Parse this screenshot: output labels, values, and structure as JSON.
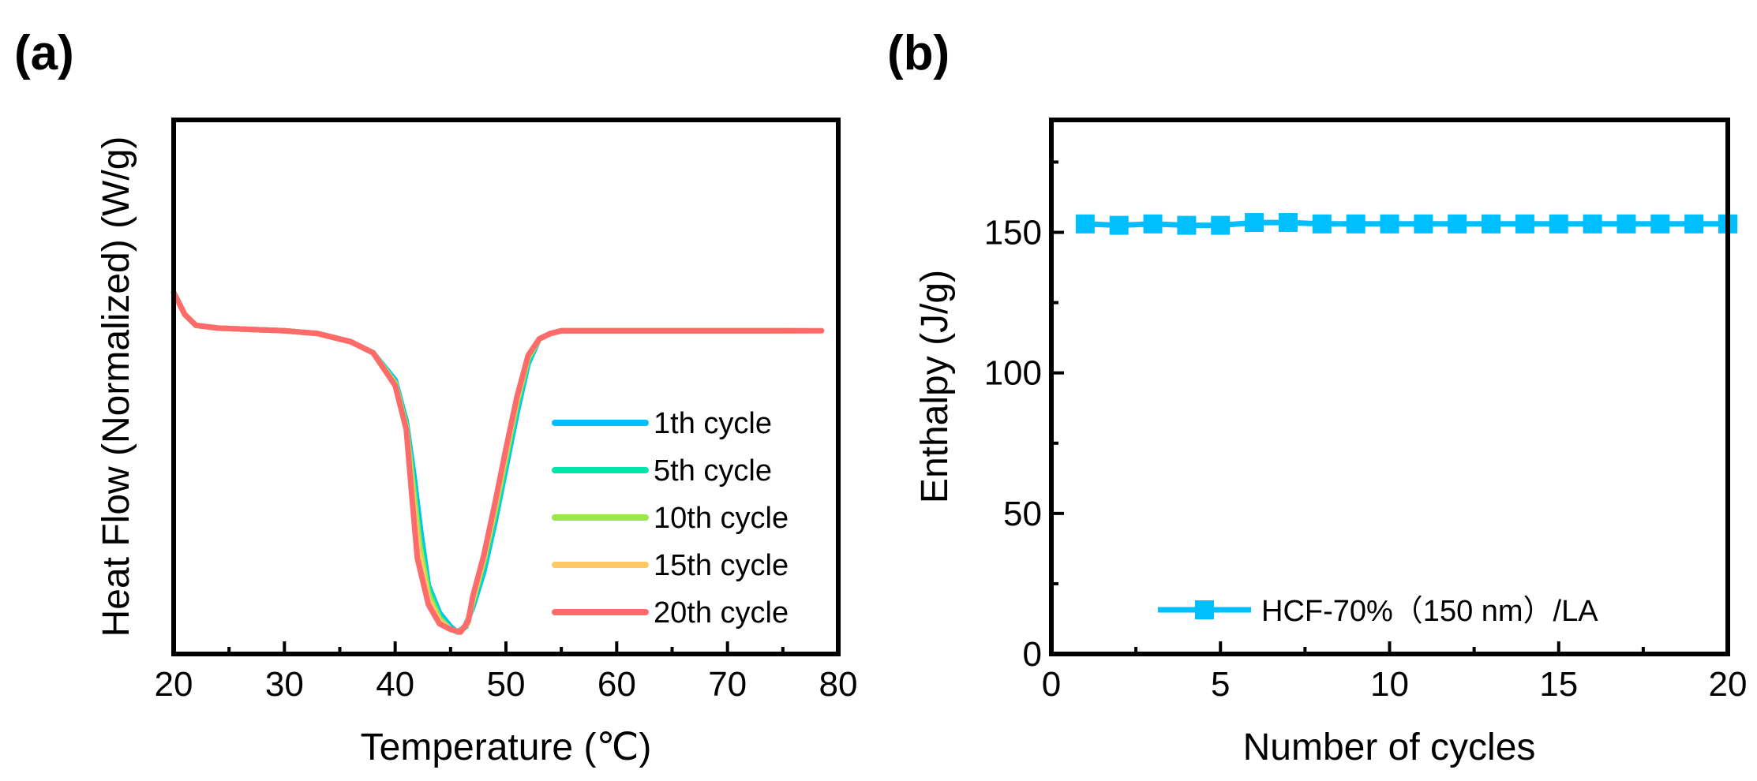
{
  "chart_data": [
    {
      "panel": "(a)",
      "type": "line",
      "title": "",
      "xlabel": "Temperature (℃)",
      "ylabel": "Heat Flow (Normalized) (W/g)",
      "xlim": [
        20,
        80
      ],
      "ylim": [
        -1.2,
        0.75
      ],
      "xticks": [
        20,
        30,
        40,
        50,
        60,
        70,
        80
      ],
      "yticks_shown": false,
      "legend_position": "right-middle",
      "series": [
        {
          "name": "1th cycle",
          "color": "#00BFFF",
          "x": [
            20,
            21,
            22,
            24,
            27,
            30,
            33,
            36,
            38,
            40,
            41,
            41.7,
            42.3,
            43,
            44,
            45,
            45.6,
            46.3,
            47,
            48,
            49,
            50,
            51,
            52,
            53,
            54,
            55,
            57,
            60,
            65,
            70,
            74
          ],
          "y": [
            0.12,
            0.04,
            0.0,
            -0.01,
            -0.015,
            -0.02,
            -0.03,
            -0.06,
            -0.1,
            -0.2,
            -0.35,
            -0.55,
            -0.75,
            -0.95,
            -1.05,
            -1.1,
            -1.12,
            -1.1,
            -1.03,
            -0.9,
            -0.72,
            -0.52,
            -0.32,
            -0.14,
            -0.05,
            -0.03,
            -0.02,
            -0.02,
            -0.02,
            -0.02,
            -0.02,
            -0.02
          ]
        },
        {
          "name": "5th cycle",
          "color": "#00E5A8",
          "x": [
            20,
            21,
            22,
            24,
            27,
            30,
            33,
            36,
            38,
            40,
            41,
            41.6,
            42.2,
            43,
            44,
            45,
            45.7,
            46.4,
            47,
            48,
            49,
            50,
            51,
            52,
            53,
            54,
            55,
            57,
            60,
            65,
            70,
            75
          ],
          "y": [
            0.12,
            0.04,
            0.0,
            -0.01,
            -0.015,
            -0.02,
            -0.03,
            -0.06,
            -0.1,
            -0.21,
            -0.36,
            -0.56,
            -0.77,
            -0.96,
            -1.06,
            -1.11,
            -1.12,
            -1.1,
            -1.02,
            -0.88,
            -0.7,
            -0.5,
            -0.3,
            -0.13,
            -0.05,
            -0.03,
            -0.02,
            -0.02,
            -0.02,
            -0.02,
            -0.02,
            -0.02
          ]
        },
        {
          "name": "10th cycle",
          "color": "#99E64D",
          "x": [
            20,
            21,
            22,
            24,
            27,
            30,
            33,
            36,
            38,
            40,
            41,
            41.6,
            42.2,
            43,
            44,
            45,
            45.8,
            46.5,
            47,
            48,
            49,
            50,
            51,
            52,
            53,
            54,
            55,
            57,
            60,
            65,
            70,
            76
          ],
          "y": [
            0.12,
            0.04,
            0.0,
            -0.01,
            -0.015,
            -0.02,
            -0.03,
            -0.06,
            -0.1,
            -0.21,
            -0.37,
            -0.58,
            -0.8,
            -0.98,
            -1.07,
            -1.11,
            -1.12,
            -1.09,
            -1.01,
            -0.86,
            -0.68,
            -0.48,
            -0.28,
            -0.12,
            -0.05,
            -0.03,
            -0.02,
            -0.02,
            -0.02,
            -0.02,
            -0.02,
            -0.02
          ]
        },
        {
          "name": "15th cycle",
          "color": "#FFC966",
          "x": [
            20,
            21,
            22,
            24,
            27,
            30,
            33,
            36,
            38,
            40,
            41,
            41.5,
            42.1,
            43,
            44,
            45,
            45.8,
            46.5,
            47,
            48,
            49,
            50,
            51,
            52,
            53,
            54,
            55,
            57,
            60,
            65,
            70,
            77
          ],
          "y": [
            0.12,
            0.04,
            0.0,
            -0.01,
            -0.015,
            -0.02,
            -0.03,
            -0.06,
            -0.1,
            -0.22,
            -0.38,
            -0.6,
            -0.82,
            -1.0,
            -1.08,
            -1.11,
            -1.12,
            -1.09,
            -1.0,
            -0.85,
            -0.66,
            -0.46,
            -0.27,
            -0.11,
            -0.05,
            -0.03,
            -0.02,
            -0.02,
            -0.02,
            -0.02,
            -0.02,
            -0.02
          ]
        },
        {
          "name": "20th cycle",
          "color": "#FF6B6B",
          "x": [
            20,
            21,
            22,
            24,
            27,
            30,
            33,
            36,
            38,
            40,
            41,
            41.5,
            42,
            43,
            44,
            45,
            45.9,
            46.6,
            47,
            48,
            49,
            50,
            51,
            52,
            53,
            54,
            55,
            57,
            60,
            65,
            70,
            78.5
          ],
          "y": [
            0.12,
            0.04,
            0.0,
            -0.01,
            -0.015,
            -0.02,
            -0.03,
            -0.06,
            -0.1,
            -0.22,
            -0.38,
            -0.62,
            -0.85,
            -1.02,
            -1.09,
            -1.11,
            -1.12,
            -1.08,
            -0.99,
            -0.84,
            -0.65,
            -0.45,
            -0.26,
            -0.11,
            -0.05,
            -0.03,
            -0.02,
            -0.02,
            -0.02,
            -0.02,
            -0.02,
            -0.02
          ]
        }
      ]
    },
    {
      "panel": "(b)",
      "type": "line",
      "title": "",
      "xlabel": "Number of cycles",
      "ylabel": "Enthalpy (J/g)",
      "xlim": [
        0,
        20
      ],
      "ylim": [
        0,
        190
      ],
      "xticks": [
        0,
        5,
        10,
        15,
        20
      ],
      "yticks": [
        0,
        50,
        100,
        150
      ],
      "legend_position": "bottom-right",
      "series": [
        {
          "name": "HCF-70%（150 nm）/LA",
          "color": "#00BFFF",
          "marker": "square",
          "x": [
            1,
            2,
            3,
            4,
            5,
            6,
            7,
            8,
            9,
            10,
            11,
            12,
            13,
            14,
            15,
            16,
            17,
            18,
            19,
            20
          ],
          "y": [
            153,
            152.5,
            153,
            152.5,
            152.5,
            153.5,
            153.5,
            153,
            153,
            153,
            153,
            153,
            153,
            153,
            153,
            153,
            153,
            153,
            153,
            153
          ]
        }
      ]
    }
  ]
}
